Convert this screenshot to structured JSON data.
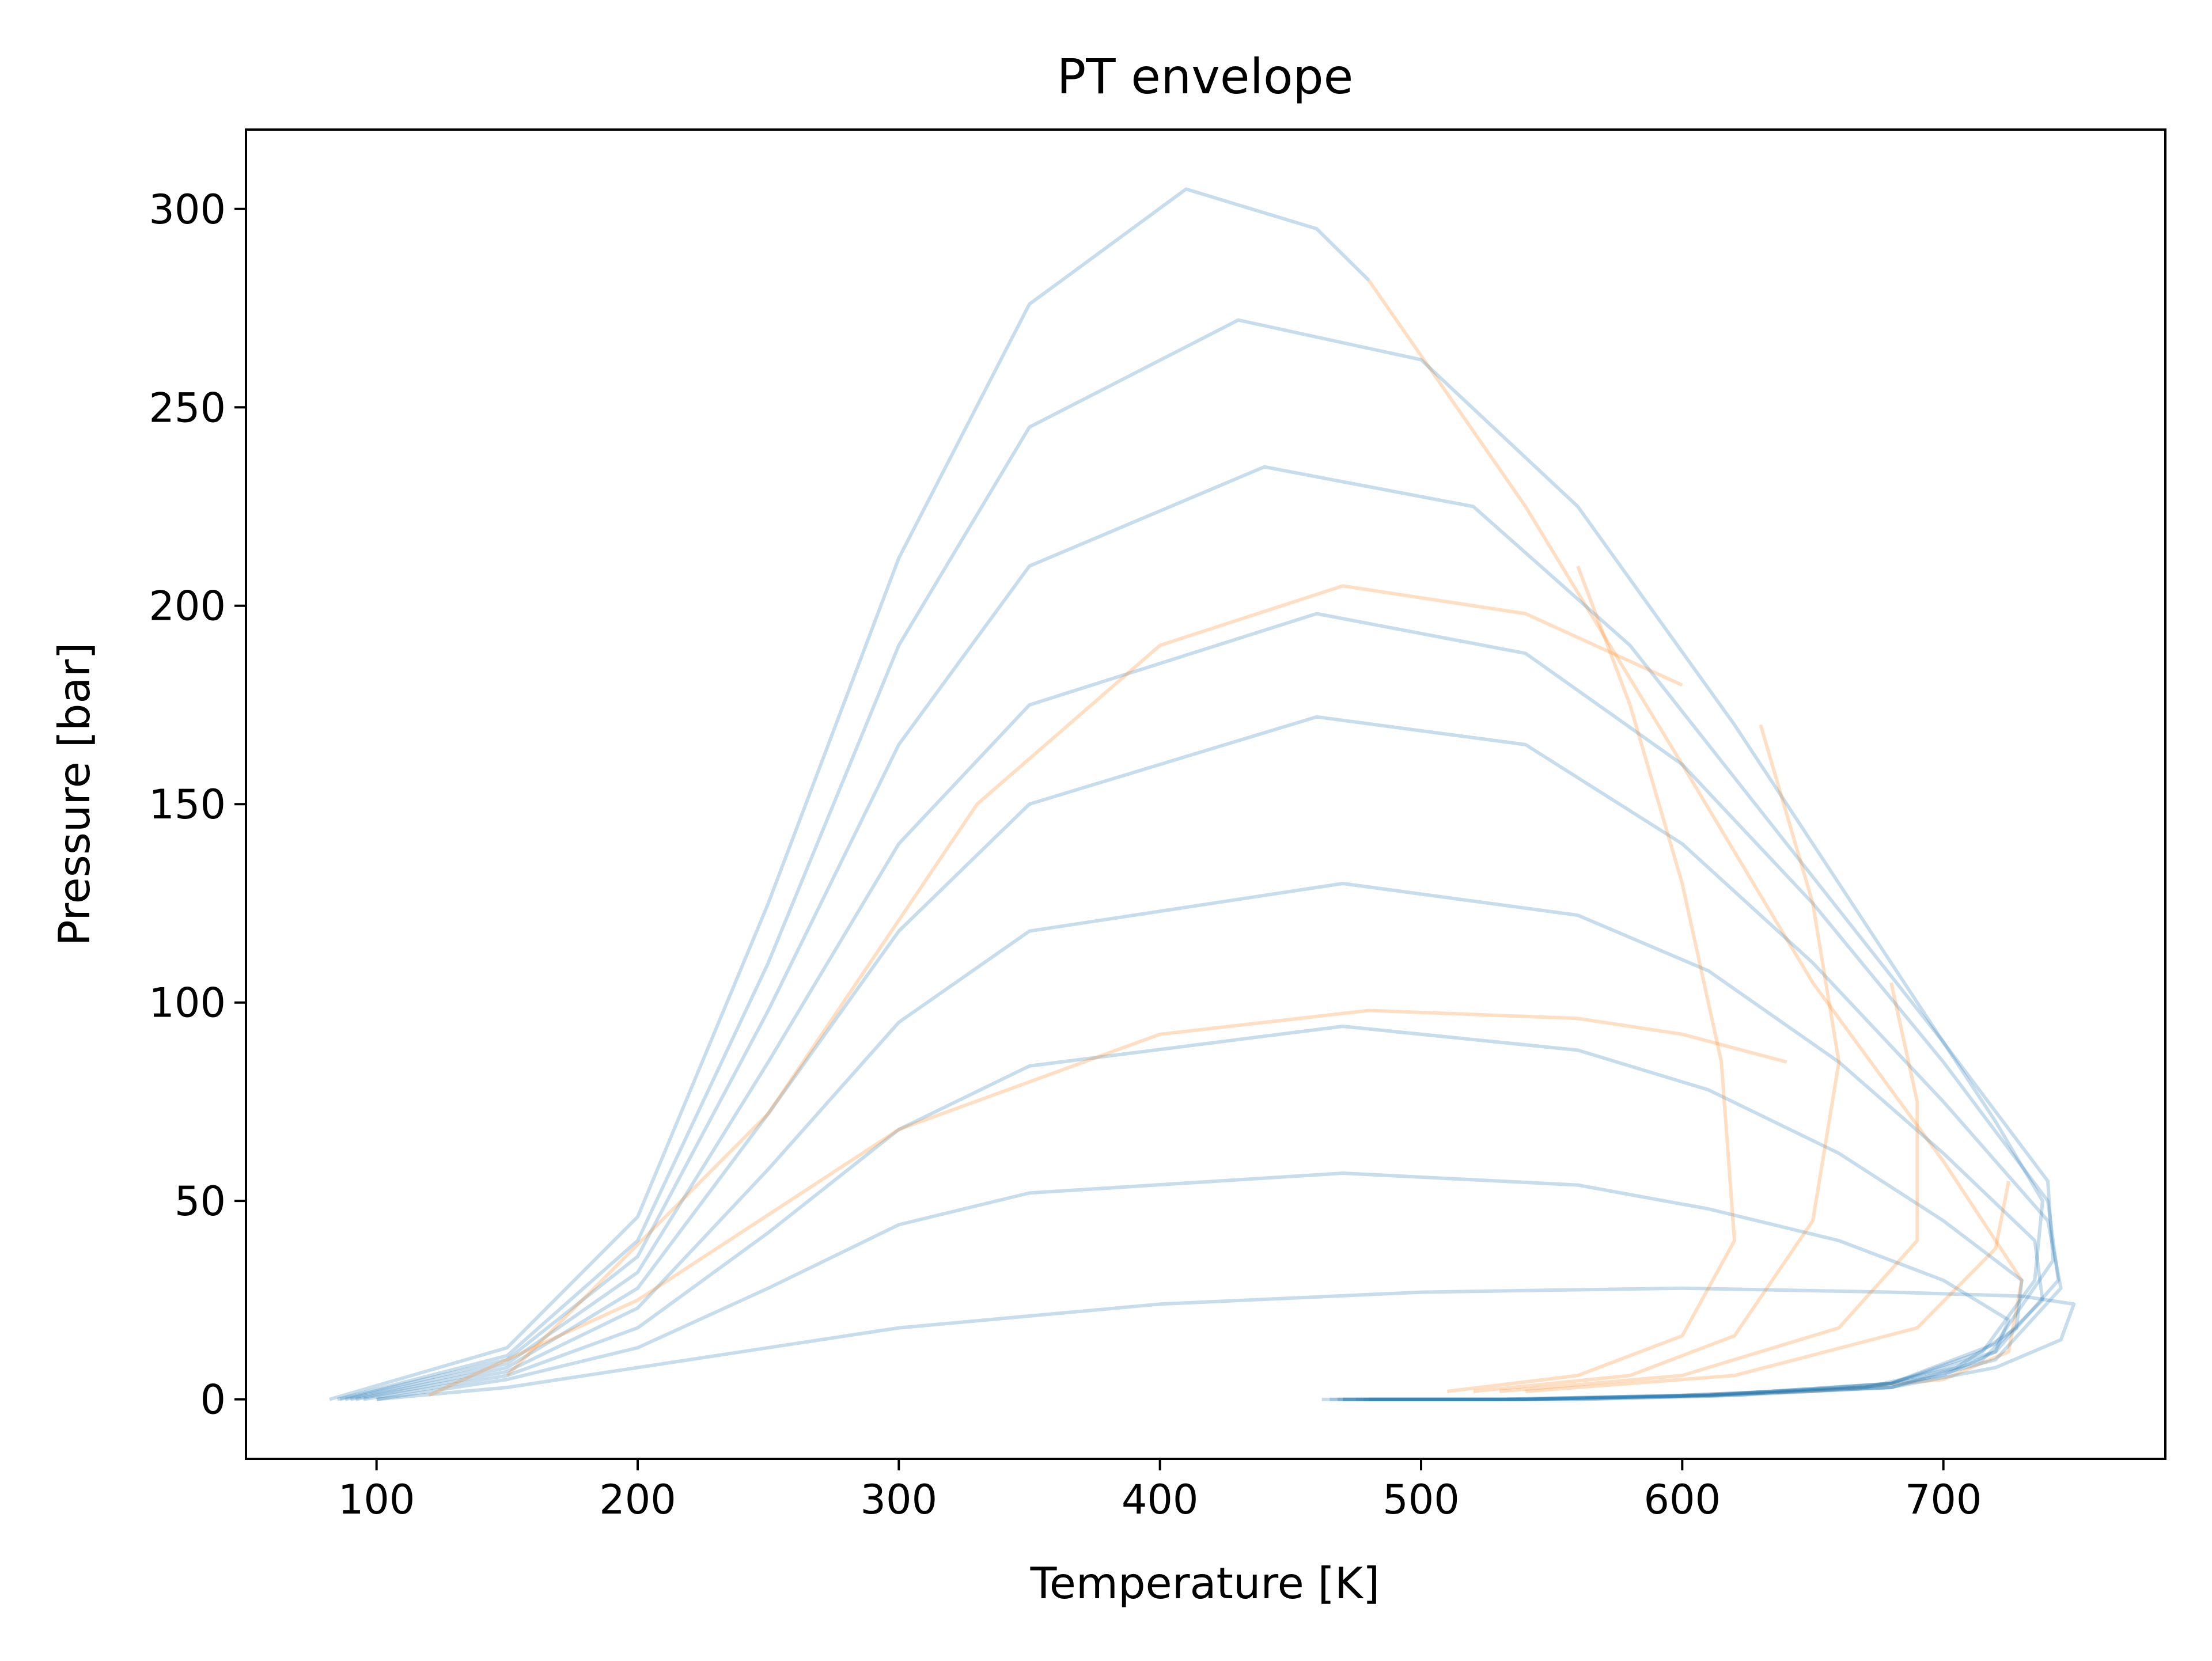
{
  "chart_data": {
    "type": "line",
    "title": "PT envelope",
    "xlabel": "Temperature [K]",
    "ylabel": "Pressure [bar]",
    "xlim": [
      50,
      785
    ],
    "ylim": [
      -15,
      320
    ],
    "xticks": [
      100,
      200,
      300,
      400,
      500,
      600,
      700
    ],
    "yticks": [
      0,
      50,
      100,
      150,
      200,
      250,
      300
    ],
    "grid": false,
    "legend": "none",
    "colors": {
      "blue": "#1f77b4",
      "orange": "#ff7f0e",
      "axes": "#000000",
      "background": "#ffffff"
    },
    "line_alpha": 0.25,
    "series": [
      {
        "color": "blue",
        "points": [
          [
            82,
            0
          ],
          [
            150,
            13
          ],
          [
            200,
            46
          ],
          [
            250,
            125
          ],
          [
            300,
            212
          ],
          [
            350,
            276
          ],
          [
            410,
            305
          ],
          [
            460,
            295
          ],
          [
            480,
            282
          ]
        ]
      },
      {
        "color": "orange",
        "points": [
          [
            480,
            282
          ],
          [
            540,
            225
          ],
          [
            600,
            160
          ],
          [
            650,
            105
          ],
          [
            700,
            60
          ],
          [
            730,
            30
          ],
          [
            725,
            12
          ],
          [
            700,
            5
          ],
          [
            650,
            2
          ],
          [
            600,
            1
          ]
        ]
      },
      {
        "color": "blue",
        "points": [
          [
            85,
            0
          ],
          [
            150,
            11
          ],
          [
            200,
            40
          ],
          [
            250,
            110
          ],
          [
            300,
            190
          ],
          [
            350,
            245
          ],
          [
            430,
            272
          ],
          [
            500,
            262
          ],
          [
            560,
            225
          ],
          [
            620,
            170
          ],
          [
            680,
            110
          ],
          [
            720,
            70
          ],
          [
            738,
            50
          ],
          [
            735,
            30
          ],
          [
            715,
            12
          ],
          [
            680,
            4
          ],
          [
            620,
            1
          ],
          [
            560,
            0
          ],
          [
            470,
            0
          ]
        ]
      },
      {
        "color": "blue",
        "points": [
          [
            86,
            0
          ],
          [
            150,
            10
          ],
          [
            200,
            36
          ],
          [
            250,
            98
          ],
          [
            300,
            165
          ],
          [
            350,
            210
          ],
          [
            440,
            235
          ],
          [
            520,
            225
          ],
          [
            580,
            190
          ],
          [
            640,
            140
          ],
          [
            700,
            90
          ],
          [
            740,
            55
          ],
          [
            742,
            35
          ],
          [
            720,
            14
          ],
          [
            680,
            4
          ],
          [
            610,
            1
          ],
          [
            540,
            0
          ],
          [
            462,
            0
          ]
        ]
      },
      {
        "color": "blue",
        "points": [
          [
            88,
            0
          ],
          [
            150,
            9
          ],
          [
            200,
            32
          ],
          [
            250,
            85
          ],
          [
            300,
            140
          ],
          [
            350,
            175
          ],
          [
            460,
            198
          ],
          [
            540,
            188
          ],
          [
            600,
            160
          ],
          [
            650,
            125
          ],
          [
            700,
            85
          ],
          [
            740,
            50
          ],
          [
            744,
            30
          ],
          [
            720,
            12
          ],
          [
            680,
            4
          ],
          [
            610,
            1
          ],
          [
            540,
            0
          ],
          [
            465,
            0
          ]
        ]
      },
      {
        "color": "blue",
        "points": [
          [
            90,
            0
          ],
          [
            150,
            8
          ],
          [
            200,
            28
          ],
          [
            250,
            72
          ],
          [
            300,
            118
          ],
          [
            350,
            150
          ],
          [
            460,
            172
          ],
          [
            540,
            165
          ],
          [
            600,
            140
          ],
          [
            650,
            110
          ],
          [
            700,
            75
          ],
          [
            740,
            45
          ],
          [
            745,
            28
          ],
          [
            720,
            10
          ],
          [
            680,
            3
          ],
          [
            610,
            1
          ],
          [
            540,
            0
          ],
          [
            468,
            0
          ]
        ]
      },
      {
        "color": "blue",
        "points": [
          [
            92,
            0
          ],
          [
            150,
            7
          ],
          [
            200,
            23
          ],
          [
            250,
            58
          ],
          [
            300,
            95
          ],
          [
            350,
            118
          ],
          [
            470,
            130
          ],
          [
            560,
            122
          ],
          [
            610,
            108
          ],
          [
            660,
            85
          ],
          [
            700,
            62
          ],
          [
            735,
            40
          ],
          [
            738,
            25
          ],
          [
            715,
            10
          ],
          [
            680,
            3
          ],
          [
            610,
            1
          ],
          [
            540,
            0
          ],
          [
            470,
            0
          ]
        ]
      },
      {
        "color": "blue",
        "points": [
          [
            95,
            0
          ],
          [
            150,
            6
          ],
          [
            200,
            18
          ],
          [
            250,
            42
          ],
          [
            300,
            68
          ],
          [
            350,
            84
          ],
          [
            470,
            94
          ],
          [
            560,
            88
          ],
          [
            610,
            78
          ],
          [
            660,
            62
          ],
          [
            700,
            45
          ],
          [
            730,
            30
          ],
          [
            728,
            18
          ],
          [
            705,
            8
          ],
          [
            670,
            3
          ],
          [
            600,
            1
          ],
          [
            530,
            0
          ],
          [
            475,
            0
          ]
        ]
      },
      {
        "color": "blue",
        "points": [
          [
            100,
            0
          ],
          [
            150,
            5
          ],
          [
            200,
            13
          ],
          [
            250,
            28
          ],
          [
            300,
            44
          ],
          [
            350,
            52
          ],
          [
            470,
            57
          ],
          [
            560,
            54
          ],
          [
            610,
            48
          ],
          [
            660,
            40
          ],
          [
            700,
            30
          ],
          [
            725,
            20
          ],
          [
            720,
            12
          ],
          [
            700,
            6
          ],
          [
            670,
            3
          ],
          [
            600,
            1
          ],
          [
            530,
            0
          ],
          [
            478,
            0
          ]
        ]
      },
      {
        "color": "blue",
        "points": [
          [
            100,
            0
          ],
          [
            150,
            3
          ],
          [
            200,
            8
          ],
          [
            300,
            18
          ],
          [
            400,
            24
          ],
          [
            500,
            27
          ],
          [
            600,
            28
          ],
          [
            680,
            27
          ],
          [
            730,
            26
          ],
          [
            750,
            24
          ],
          [
            745,
            15
          ],
          [
            720,
            8
          ],
          [
            680,
            3
          ],
          [
            620,
            1
          ],
          [
            560,
            0
          ],
          [
            480,
            0
          ]
        ]
      },
      {
        "color": "orange",
        "points": [
          [
            510,
            2
          ],
          [
            560,
            6
          ],
          [
            600,
            16
          ],
          [
            620,
            40
          ],
          [
            615,
            85
          ],
          [
            600,
            130
          ],
          [
            580,
            175
          ],
          [
            560,
            210
          ]
        ]
      },
      {
        "color": "orange",
        "points": [
          [
            520,
            2
          ],
          [
            580,
            6
          ],
          [
            620,
            16
          ],
          [
            650,
            45
          ],
          [
            660,
            85
          ],
          [
            650,
            125
          ],
          [
            630,
            170
          ]
        ]
      },
      {
        "color": "orange",
        "points": [
          [
            530,
            2
          ],
          [
            600,
            6
          ],
          [
            660,
            18
          ],
          [
            690,
            40
          ],
          [
            690,
            75
          ],
          [
            680,
            105
          ]
        ]
      },
      {
        "color": "orange",
        "points": [
          [
            540,
            2
          ],
          [
            620,
            6
          ],
          [
            690,
            18
          ],
          [
            720,
            38
          ],
          [
            725,
            55
          ]
        ]
      },
      {
        "color": "orange",
        "points": [
          [
            120,
            1
          ],
          [
            200,
            25
          ],
          [
            300,
            68
          ],
          [
            400,
            92
          ],
          [
            480,
            98
          ],
          [
            560,
            96
          ],
          [
            600,
            92
          ],
          [
            640,
            85
          ]
        ]
      },
      {
        "color": "orange",
        "points": [
          [
            150,
            6
          ],
          [
            250,
            72
          ],
          [
            330,
            150
          ],
          [
            400,
            190
          ],
          [
            470,
            205
          ],
          [
            540,
            198
          ],
          [
            600,
            180
          ]
        ]
      }
    ]
  }
}
